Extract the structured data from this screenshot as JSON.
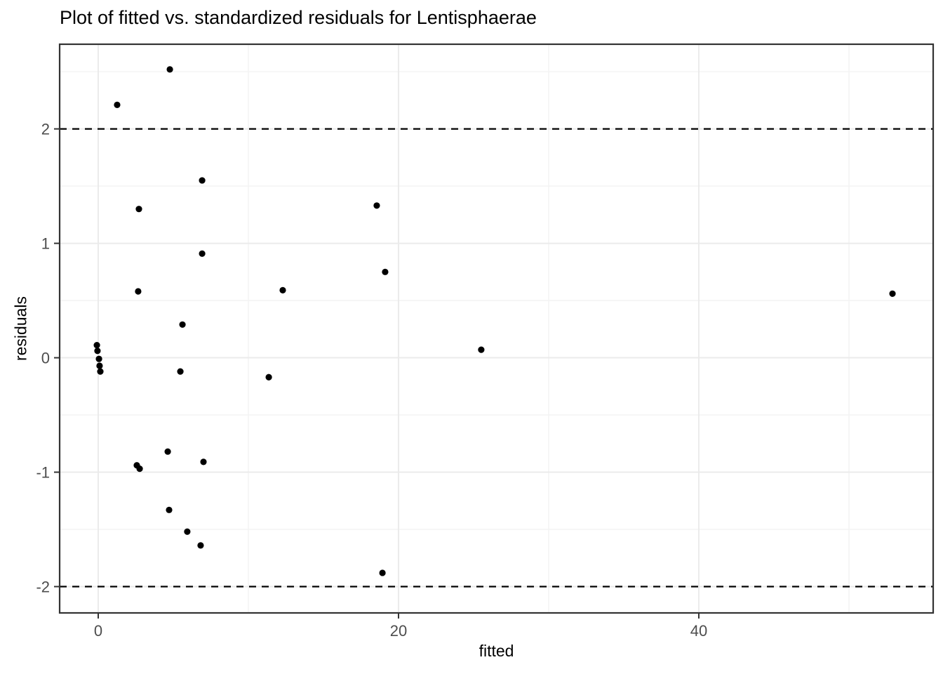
{
  "chart_data": {
    "type": "scatter",
    "title": "Plot of fitted vs. standardized residuals for Lentisphaerae",
    "xlabel": "fitted",
    "ylabel": "residuals",
    "xlim": [
      -2.57,
      55.61
    ],
    "ylim": [
      -2.23,
      2.74
    ],
    "x_major_ticks": [
      0,
      20,
      40
    ],
    "x_minor_ticks": [
      10,
      30,
      50
    ],
    "y_major_ticks": [
      -2,
      -1,
      0,
      1,
      2
    ],
    "y_minor_ticks": [
      -1.5,
      -0.5,
      0.5,
      1.5,
      2.5
    ],
    "grid": true,
    "legend": false,
    "reference_lines": [
      {
        "y": 2,
        "style": "dashed"
      },
      {
        "y": -2,
        "style": "dashed"
      }
    ],
    "points": [
      [
        1.26,
        2.21
      ],
      [
        4.77,
        2.52
      ],
      [
        2.71,
        1.3
      ],
      [
        6.92,
        1.55
      ],
      [
        18.55,
        1.33
      ],
      [
        2.66,
        0.58
      ],
      [
        6.92,
        0.91
      ],
      [
        12.29,
        0.59
      ],
      [
        19.11,
        0.75
      ],
      [
        52.9,
        0.56
      ],
      [
        5.61,
        0.29
      ],
      [
        25.51,
        0.07
      ],
      [
        -0.09,
        0.11
      ],
      [
        -0.05,
        0.06
      ],
      [
        0.05,
        -0.01
      ],
      [
        0.09,
        -0.07
      ],
      [
        0.14,
        -0.12
      ],
      [
        5.47,
        -0.12
      ],
      [
        11.36,
        -0.17
      ],
      [
        4.63,
        -0.82
      ],
      [
        2.57,
        -0.94
      ],
      [
        2.76,
        -0.97
      ],
      [
        7.01,
        -0.91
      ],
      [
        4.72,
        -1.33
      ],
      [
        5.93,
        -1.52
      ],
      [
        6.82,
        -1.64
      ],
      [
        18.93,
        -1.88
      ]
    ],
    "colors": {
      "point": "#000000",
      "reference_line": "#000000",
      "panel_border": "#333333",
      "grid_major": "#ebebeb",
      "grid_minor": "#f4f4f4",
      "tick_label": "#4d4d4d",
      "tick_mark": "#333333",
      "background": "#ffffff"
    }
  }
}
